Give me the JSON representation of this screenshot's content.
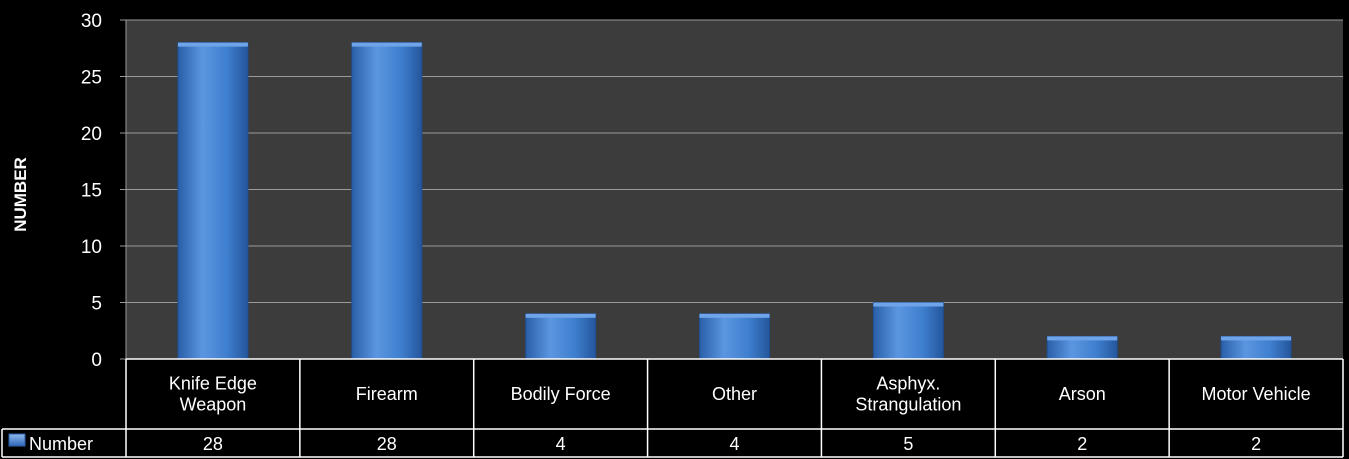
{
  "chart_data": {
    "type": "bar",
    "ylabel": "NUMBER",
    "xlabel": "",
    "ylim": [
      0,
      30
    ],
    "yticks": [
      0,
      5,
      10,
      15,
      20,
      25,
      30
    ],
    "grid": true,
    "categories": [
      [
        "Knife Edge",
        "Weapon"
      ],
      [
        "Firearm"
      ],
      [
        "Bodily Force"
      ],
      [
        "Other"
      ],
      [
        "Asphyx.",
        "Strangulation"
      ],
      [
        "Arson"
      ],
      [
        "Motor Vehicle"
      ]
    ],
    "series": [
      {
        "name": "Number",
        "values": [
          28,
          28,
          4,
          4,
          5,
          2,
          2
        ]
      }
    ],
    "legend": "data-table",
    "colors": {
      "background": "#000000",
      "plot_area": "#3c3c3c",
      "gridline": "#9a9a9a",
      "bar": "#3f7fcf",
      "bar_light": "#6fa5e8",
      "bar_dark": "#1f4f92",
      "table_border": "#ffffff"
    }
  }
}
